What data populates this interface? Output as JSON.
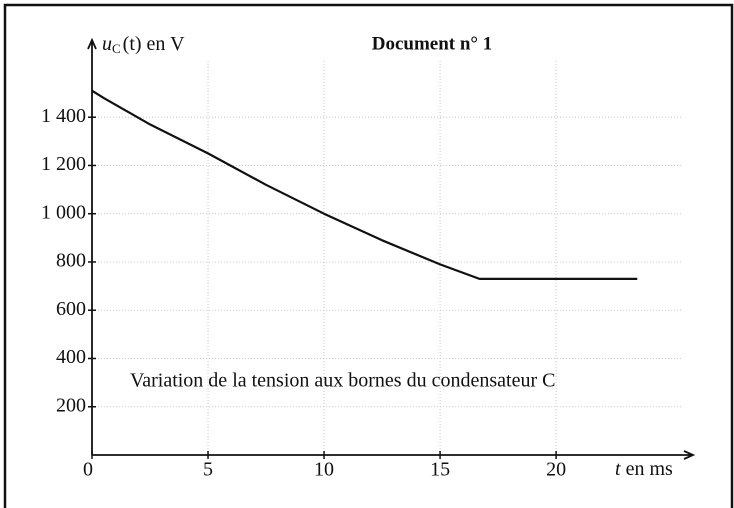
{
  "chart_data": {
    "type": "line",
    "title": "Document n° 1",
    "ylabel": {
      "symbol": "u",
      "subscript": "C",
      "text": "(t) en V"
    },
    "xlabel": {
      "symbol": "t",
      "text": "en ms"
    },
    "annotation": "Variation de la tension aux bornes du condensateur C",
    "x": [
      0,
      0.5,
      2.5,
      5,
      7.5,
      10,
      12.5,
      15,
      16.7,
      20,
      23.5
    ],
    "series": [
      {
        "name": "u_C(t)",
        "color": "#111111",
        "values": [
          1510,
          1480,
          1370,
          1250,
          1120,
          1000,
          890,
          790,
          730,
          730,
          730
        ]
      }
    ],
    "xlim": [
      0,
      25.9
    ],
    "xticks": [
      0,
      5,
      10,
      15,
      20
    ],
    "ylim": [
      0,
      1720
    ],
    "yticks": [
      200,
      400,
      600,
      800,
      {
        "value": 1000,
        "label": "1 000"
      },
      {
        "value": 1200,
        "label": "1 200"
      },
      {
        "value": 1400,
        "label": "1 400"
      }
    ],
    "grid": true
  }
}
